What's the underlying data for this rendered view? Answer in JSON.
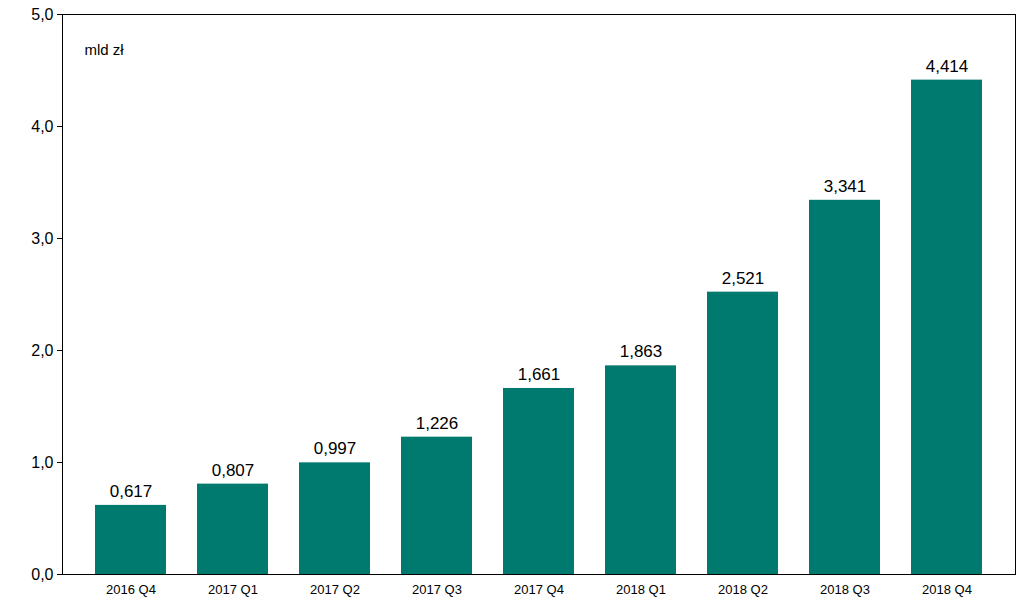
{
  "chart_data": {
    "type": "bar",
    "ylabel": "mld zł",
    "categories": [
      "2016 Q4",
      "2017 Q1",
      "2017 Q2",
      "2017 Q3",
      "2017 Q4",
      "2018 Q1",
      "2018 Q2",
      "2018 Q3",
      "2018 Q4"
    ],
    "values": [
      0.617,
      0.807,
      0.997,
      1.226,
      1.661,
      1.863,
      2.521,
      3.341,
      4.414
    ],
    "value_labels": [
      "0,617",
      "0,807",
      "0,997",
      "1,226",
      "1,661",
      "1,863",
      "2,521",
      "3,341",
      "4,414"
    ],
    "color": "#007A6E",
    "ylim": [
      0,
      5
    ],
    "yticks": [
      {
        "value": 0,
        "label": "0,0"
      },
      {
        "value": 1,
        "label": "1,0"
      },
      {
        "value": 2,
        "label": "2,0"
      },
      {
        "value": 3,
        "label": "3,0"
      },
      {
        "value": 4,
        "label": "4,0"
      },
      {
        "value": 5,
        "label": "5,0"
      }
    ],
    "grid": false,
    "data_labels": true
  }
}
